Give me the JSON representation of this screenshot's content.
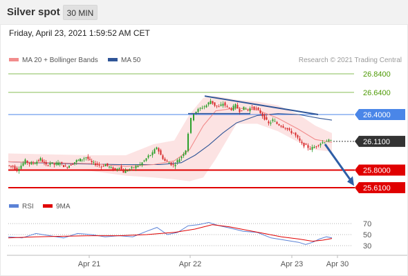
{
  "header": {
    "title": "Silver spot",
    "interval": "30 MIN"
  },
  "timestamp": "Friday, April 23, 2021 1:59:52 AM CET",
  "legend": {
    "ma20": "MA 20 + Bollinger Bands",
    "ma50": "MA 50",
    "copyright": "Research © 2021 Trading Central",
    "rsi": "RSI",
    "rsi_ma": "9MA"
  },
  "colors": {
    "ma20": "#f28c8c",
    "ma50": "#2f5597",
    "band": "#fbd9d9",
    "resistance": "#86bd55",
    "pivot": "#4a86e8",
    "support": "#e00000",
    "current": "#333333",
    "arrow": "#2e5ea6",
    "rsi": "#5b82d6",
    "rsi_ma": "#e00000"
  },
  "chart_data": [
    {
      "type": "candlestick",
      "panel": "price",
      "ylim": [
        25.58,
        26.87
      ],
      "x_ticks": [
        "Apr 21",
        "Apr 22",
        "Apr 23",
        "Apr 30"
      ],
      "levels": [
        {
          "label": "26.8400",
          "value": 26.84,
          "kind": "resistance"
        },
        {
          "label": "26.6400",
          "value": 26.64,
          "kind": "resistance"
        },
        {
          "label": "26.4000",
          "value": 26.4,
          "kind": "pivot"
        },
        {
          "label": "26.1100",
          "value": 26.11,
          "kind": "current"
        },
        {
          "label": "25.8000",
          "value": 25.8,
          "kind": "support"
        },
        {
          "label": "25.6100",
          "value": 25.61,
          "kind": "support"
        }
      ],
      "price_path": [
        [
          0,
          25.85
        ],
        [
          8,
          25.84
        ],
        [
          14,
          25.8
        ],
        [
          20,
          25.85
        ],
        [
          26,
          25.9
        ],
        [
          32,
          25.87
        ],
        [
          40,
          25.88
        ],
        [
          48,
          25.92
        ],
        [
          56,
          25.85
        ],
        [
          62,
          25.88
        ],
        [
          68,
          25.86
        ],
        [
          76,
          25.88
        ],
        [
          84,
          25.83
        ],
        [
          92,
          25.86
        ],
        [
          100,
          25.9
        ],
        [
          108,
          25.92
        ],
        [
          114,
          25.94
        ],
        [
          122,
          25.88
        ],
        [
          130,
          25.86
        ],
        [
          136,
          25.84
        ],
        [
          142,
          25.86
        ],
        [
          150,
          25.82
        ],
        [
          156,
          25.8
        ],
        [
          162,
          25.84
        ],
        [
          168,
          25.78
        ],
        [
          174,
          25.8
        ],
        [
          180,
          25.82
        ],
        [
          186,
          25.84
        ],
        [
          192,
          25.86
        ],
        [
          198,
          25.9
        ],
        [
          204,
          25.95
        ],
        [
          210,
          25.98
        ],
        [
          216,
          26.05
        ],
        [
          222,
          25.96
        ],
        [
          228,
          25.9
        ],
        [
          234,
          25.88
        ],
        [
          240,
          25.85
        ],
        [
          246,
          25.9
        ],
        [
          252,
          25.95
        ],
        [
          258,
          26.02
        ],
        [
          262,
          26.2
        ],
        [
          266,
          26.35
        ],
        [
          270,
          26.42
        ],
        [
          276,
          26.45
        ],
        [
          282,
          26.48
        ],
        [
          288,
          26.5
        ],
        [
          294,
          26.55
        ],
        [
          300,
          26.5
        ],
        [
          306,
          26.48
        ],
        [
          312,
          26.52
        ],
        [
          318,
          26.48
        ],
        [
          324,
          26.46
        ],
        [
          330,
          26.5
        ],
        [
          336,
          26.44
        ],
        [
          342,
          26.47
        ],
        [
          348,
          26.45
        ],
        [
          354,
          26.48
        ],
        [
          360,
          26.46
        ],
        [
          366,
          26.42
        ],
        [
          372,
          26.36
        ],
        [
          378,
          26.3
        ],
        [
          384,
          26.34
        ],
        [
          390,
          26.3
        ],
        [
          396,
          26.28
        ],
        [
          402,
          26.26
        ],
        [
          408,
          26.22
        ],
        [
          414,
          26.2
        ],
        [
          420,
          26.14
        ],
        [
          426,
          26.08
        ],
        [
          432,
          26.06
        ],
        [
          438,
          26.03
        ],
        [
          444,
          26.05
        ],
        [
          450,
          26.08
        ],
        [
          456,
          26.1
        ],
        [
          462,
          26.12
        ],
        [
          468,
          26.11
        ]
      ],
      "ma20": [
        [
          0,
          25.89
        ],
        [
          60,
          25.88
        ],
        [
          120,
          25.87
        ],
        [
          170,
          25.84
        ],
        [
          210,
          25.86
        ],
        [
          240,
          25.9
        ],
        [
          262,
          26.02
        ],
        [
          282,
          26.28
        ],
        [
          300,
          26.44
        ],
        [
          330,
          26.47
        ],
        [
          360,
          26.45
        ],
        [
          390,
          26.36
        ],
        [
          420,
          26.24
        ],
        [
          444,
          26.13
        ],
        [
          468,
          26.1
        ]
      ],
      "ma50": [
        [
          0,
          25.89
        ],
        [
          80,
          25.87
        ],
        [
          160,
          25.86
        ],
        [
          220,
          25.86
        ],
        [
          250,
          25.88
        ],
        [
          270,
          25.96
        ],
        [
          290,
          26.07
        ],
        [
          310,
          26.2
        ],
        [
          330,
          26.31
        ],
        [
          360,
          26.39
        ],
        [
          390,
          26.41
        ],
        [
          420,
          26.4
        ],
        [
          450,
          26.36
        ],
        [
          468,
          26.34
        ]
      ],
      "band_upper": [
        [
          0,
          25.98
        ],
        [
          60,
          25.97
        ],
        [
          120,
          25.96
        ],
        [
          170,
          25.96
        ],
        [
          210,
          26.08
        ],
        [
          240,
          26.12
        ],
        [
          262,
          26.4
        ],
        [
          282,
          26.58
        ],
        [
          300,
          26.6
        ],
        [
          330,
          26.56
        ],
        [
          360,
          26.54
        ],
        [
          390,
          26.5
        ],
        [
          420,
          26.4
        ],
        [
          444,
          26.28
        ],
        [
          468,
          26.2
        ]
      ],
      "band_lower": [
        [
          0,
          25.8
        ],
        [
          60,
          25.8
        ],
        [
          120,
          25.79
        ],
        [
          170,
          25.74
        ],
        [
          210,
          25.72
        ],
        [
          240,
          25.7
        ],
        [
          262,
          25.68
        ],
        [
          282,
          25.72
        ],
        [
          300,
          25.92
        ],
        [
          330,
          26.3
        ],
        [
          360,
          26.3
        ],
        [
          390,
          26.22
        ],
        [
          420,
          26.1
        ],
        [
          444,
          26.02
        ],
        [
          468,
          26.0
        ]
      ]
    },
    {
      "type": "line",
      "panel": "rsi",
      "ylim": [
        20,
        80
      ],
      "y_ticks": [
        70,
        50,
        30
      ],
      "series": [
        {
          "name": "RSI",
          "values": [
            [
              0,
              46
            ],
            [
              20,
              44
            ],
            [
              40,
              52
            ],
            [
              60,
              48
            ],
            [
              80,
              44
            ],
            [
              100,
              52
            ],
            [
              120,
              50
            ],
            [
              140,
              46
            ],
            [
              160,
              48
            ],
            [
              180,
              46
            ],
            [
              200,
              56
            ],
            [
              215,
              63
            ],
            [
              230,
              50
            ],
            [
              245,
              54
            ],
            [
              260,
              66
            ],
            [
              275,
              68
            ],
            [
              290,
              72
            ],
            [
              305,
              66
            ],
            [
              320,
              62
            ],
            [
              340,
              56
            ],
            [
              360,
              54
            ],
            [
              380,
              44
            ],
            [
              400,
              40
            ],
            [
              420,
              36
            ],
            [
              430,
              32
            ],
            [
              440,
              36
            ],
            [
              450,
              42
            ],
            [
              460,
              46
            ],
            [
              468,
              44
            ]
          ]
        },
        {
          "name": "9MA",
          "values": [
            [
              0,
              44
            ],
            [
              40,
              46
            ],
            [
              80,
              47
            ],
            [
              120,
              48
            ],
            [
              160,
              48
            ],
            [
              200,
              50
            ],
            [
              240,
              54
            ],
            [
              270,
              60
            ],
            [
              295,
              68
            ],
            [
              320,
              64
            ],
            [
              345,
              58
            ],
            [
              370,
              52
            ],
            [
              395,
              46
            ],
            [
              420,
              42
            ],
            [
              440,
              38
            ],
            [
              455,
              40
            ],
            [
              468,
              43
            ]
          ]
        }
      ]
    }
  ]
}
